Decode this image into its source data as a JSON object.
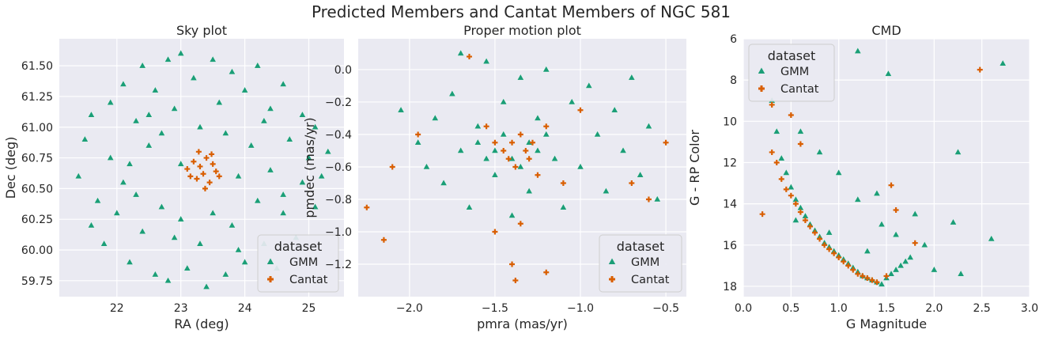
{
  "figure": {
    "suptitle": "Predicted Members and Cantat Members of NGC 581"
  },
  "colors": {
    "gmm": "#1b9e77",
    "cantat": "#d95f02",
    "panel_bg": "#eaeaf2",
    "grid": "#ffffff"
  },
  "legend": {
    "title": "dataset",
    "entries": [
      "GMM",
      "Cantat"
    ]
  },
  "chart_data": [
    {
      "type": "scatter",
      "title": "Sky plot",
      "xlabel": "RA (deg)",
      "ylabel": "Dec (deg)",
      "xlim": [
        21.1,
        25.55
      ],
      "ylim": [
        59.62,
        61.72
      ],
      "xticks": [
        22,
        23,
        24,
        25
      ],
      "yticks": [
        59.75,
        60.0,
        60.25,
        60.5,
        60.75,
        61.0,
        61.25,
        61.5
      ],
      "xtick_labels": [
        "22",
        "23",
        "24",
        "25"
      ],
      "ytick_labels": [
        "59.75",
        "60.00",
        "60.25",
        "60.50",
        "60.75",
        "61.00",
        "61.25",
        "61.50"
      ],
      "grid": true,
      "legend_position": "lower-right",
      "series": [
        {
          "name": "GMM",
          "marker": "triangle",
          "points": [
            [
              21.4,
              60.6
            ],
            [
              21.5,
              60.9
            ],
            [
              21.6,
              60.2
            ],
            [
              21.6,
              61.1
            ],
            [
              21.7,
              60.4
            ],
            [
              21.8,
              60.05
            ],
            [
              21.9,
              61.2
            ],
            [
              21.9,
              60.75
            ],
            [
              22.0,
              60.3
            ],
            [
              22.1,
              61.35
            ],
            [
              22.1,
              60.55
            ],
            [
              22.2,
              59.9
            ],
            [
              22.3,
              61.05
            ],
            [
              22.3,
              60.45
            ],
            [
              22.4,
              61.5
            ],
            [
              22.4,
              60.15
            ],
            [
              22.5,
              60.85
            ],
            [
              22.6,
              59.8
            ],
            [
              22.6,
              61.3
            ],
            [
              22.7,
              60.35
            ],
            [
              22.7,
              60.95
            ],
            [
              22.8,
              61.55
            ],
            [
              22.8,
              59.75
            ],
            [
              22.9,
              60.1
            ],
            [
              22.9,
              61.15
            ],
            [
              23.0,
              61.6
            ],
            [
              23.0,
              60.25
            ],
            [
              23.1,
              59.85
            ],
            [
              23.2,
              61.4
            ],
            [
              23.3,
              60.05
            ],
            [
              23.3,
              61.0
            ],
            [
              23.4,
              59.7
            ],
            [
              23.5,
              61.55
            ],
            [
              23.5,
              60.3
            ],
            [
              23.6,
              61.2
            ],
            [
              23.7,
              59.8
            ],
            [
              23.7,
              60.95
            ],
            [
              23.8,
              61.45
            ],
            [
              23.8,
              60.2
            ],
            [
              23.9,
              60.6
            ],
            [
              24.0,
              61.3
            ],
            [
              24.0,
              59.9
            ],
            [
              24.1,
              60.85
            ],
            [
              24.2,
              61.5
            ],
            [
              24.2,
              60.4
            ],
            [
              24.3,
              60.05
            ],
            [
              24.4,
              61.15
            ],
            [
              24.4,
              60.65
            ],
            [
              24.5,
              59.85
            ],
            [
              24.6,
              61.35
            ],
            [
              24.6,
              60.3
            ],
            [
              24.7,
              60.9
            ],
            [
              24.8,
              60.1
            ],
            [
              24.9,
              61.1
            ],
            [
              24.9,
              60.55
            ],
            [
              25.0,
              60.75
            ],
            [
              25.1,
              60.35
            ],
            [
              25.1,
              61.0
            ],
            [
              25.2,
              60.6
            ],
            [
              25.3,
              60.8
            ],
            [
              23.0,
              60.7
            ],
            [
              22.5,
              61.1
            ],
            [
              24.3,
              61.05
            ],
            [
              23.9,
              60.0
            ],
            [
              22.2,
              60.7
            ],
            [
              24.6,
              60.45
            ]
          ]
        },
        {
          "name": "Cantat",
          "marker": "plus",
          "points": [
            [
              23.1,
              60.66
            ],
            [
              23.2,
              60.72
            ],
            [
              23.25,
              60.58
            ],
            [
              23.3,
              60.68
            ],
            [
              23.35,
              60.62
            ],
            [
              23.4,
              60.75
            ],
            [
              23.45,
              60.55
            ],
            [
              23.5,
              60.7
            ],
            [
              23.55,
              60.64
            ],
            [
              23.6,
              60.6
            ],
            [
              23.28,
              60.8
            ],
            [
              23.38,
              60.5
            ],
            [
              23.15,
              60.6
            ],
            [
              23.48,
              60.78
            ]
          ]
        }
      ]
    },
    {
      "type": "scatter",
      "title": "Proper motion plot",
      "xlabel": "pmra (mas/yr)",
      "ylabel": "pmdec (mas/yr)",
      "xlim": [
        -2.3,
        -0.38
      ],
      "ylim": [
        -1.4,
        0.19
      ],
      "xticks": [
        -2.0,
        -1.5,
        -1.0,
        -0.5
      ],
      "yticks": [
        -1.2,
        -1.0,
        -0.8,
        -0.6,
        -0.4,
        -0.2,
        0.0
      ],
      "xtick_labels": [
        "−2.0",
        "−1.5",
        "−1.0",
        "−0.5"
      ],
      "ytick_labels": [
        "−1.2",
        "−1.0",
        "−0.8",
        "−0.6",
        "−0.4",
        "−0.2",
        "0.0"
      ],
      "grid": true,
      "legend_position": "lower-right",
      "series": [
        {
          "name": "GMM",
          "marker": "triangle",
          "points": [
            [
              -2.05,
              -0.25
            ],
            [
              -1.95,
              -0.45
            ],
            [
              -1.9,
              -0.6
            ],
            [
              -1.85,
              -0.3
            ],
            [
              -1.8,
              -0.7
            ],
            [
              -1.75,
              -0.15
            ],
            [
              -1.7,
              -0.5
            ],
            [
              -1.7,
              0.1
            ],
            [
              -1.65,
              -0.85
            ],
            [
              -1.6,
              -0.35
            ],
            [
              -1.55,
              0.05
            ],
            [
              -1.5,
              -0.65
            ],
            [
              -1.45,
              -0.2
            ],
            [
              -1.4,
              -0.9
            ],
            [
              -1.35,
              -0.05
            ],
            [
              -1.3,
              -0.75
            ],
            [
              -1.25,
              -0.3
            ],
            [
              -1.2,
              0.0
            ],
            [
              -1.15,
              -0.55
            ],
            [
              -1.1,
              -0.85
            ],
            [
              -1.05,
              -0.2
            ],
            [
              -1.0,
              -0.6
            ],
            [
              -0.95,
              -0.1
            ],
            [
              -0.9,
              -0.4
            ],
            [
              -0.85,
              -0.75
            ],
            [
              -0.8,
              -0.25
            ],
            [
              -0.75,
              -0.5
            ],
            [
              -0.7,
              -0.05
            ],
            [
              -0.65,
              -0.65
            ],
            [
              -0.6,
              -0.35
            ],
            [
              -0.55,
              -0.8
            ],
            [
              -1.6,
              -0.45
            ],
            [
              -1.5,
              -0.5
            ],
            [
              -1.4,
              -0.55
            ],
            [
              -1.3,
              -0.45
            ],
            [
              -1.2,
              -0.4
            ],
            [
              -1.45,
              -0.4
            ],
            [
              -1.35,
              -0.6
            ],
            [
              -1.55,
              -0.55
            ],
            [
              -1.25,
              -0.5
            ]
          ]
        },
        {
          "name": "Cantat",
          "marker": "plus",
          "points": [
            [
              -2.25,
              -0.85
            ],
            [
              -2.15,
              -1.05
            ],
            [
              -2.1,
              -0.6
            ],
            [
              -1.95,
              -0.4
            ],
            [
              -1.65,
              0.08
            ],
            [
              -1.55,
              -0.35
            ],
            [
              -1.5,
              -0.45
            ],
            [
              -1.45,
              -0.5
            ],
            [
              -1.42,
              -0.55
            ],
            [
              -1.4,
              -0.45
            ],
            [
              -1.38,
              -0.6
            ],
            [
              -1.35,
              -0.4
            ],
            [
              -1.32,
              -0.5
            ],
            [
              -1.3,
              -0.55
            ],
            [
              -1.28,
              -0.45
            ],
            [
              -1.25,
              -0.65
            ],
            [
              -1.2,
              -0.35
            ],
            [
              -1.1,
              -0.7
            ],
            [
              -1.0,
              -0.25
            ],
            [
              -0.5,
              -0.45
            ],
            [
              -1.4,
              -1.2
            ],
            [
              -1.38,
              -1.3
            ],
            [
              -1.5,
              -1.0
            ],
            [
              -1.35,
              -0.95
            ],
            [
              -1.2,
              -1.25
            ],
            [
              -0.7,
              -0.7
            ],
            [
              -0.6,
              -0.8
            ]
          ]
        }
      ]
    },
    {
      "type": "scatter",
      "title": "CMD",
      "xlabel": "G Magnitude",
      "ylabel": "G - RP Color",
      "xlim": [
        0.0,
        3.0
      ],
      "ylim": [
        18.5,
        6.0
      ],
      "y_inverted": true,
      "xticks": [
        0.0,
        0.5,
        1.0,
        1.5,
        2.0,
        2.5,
        3.0
      ],
      "yticks": [
        6,
        8,
        10,
        12,
        14,
        16,
        18
      ],
      "xtick_labels": [
        "0.0",
        "0.5",
        "1.0",
        "1.5",
        "2.0",
        "2.5",
        "3.0"
      ],
      "ytick_labels": [
        "6",
        "8",
        "10",
        "12",
        "14",
        "16",
        "18"
      ],
      "grid": true,
      "legend_position": "top-left",
      "series": [
        {
          "name": "GMM",
          "marker": "triangle",
          "points": [
            [
              0.3,
              9.0
            ],
            [
              0.35,
              10.5
            ],
            [
              0.4,
              11.8
            ],
            [
              0.45,
              12.5
            ],
            [
              0.5,
              13.2
            ],
            [
              0.55,
              13.8
            ],
            [
              0.6,
              14.2
            ],
            [
              0.65,
              14.6
            ],
            [
              0.7,
              15.0
            ],
            [
              0.75,
              15.3
            ],
            [
              0.8,
              15.6
            ],
            [
              0.85,
              15.9
            ],
            [
              0.9,
              16.1
            ],
            [
              0.95,
              16.3
            ],
            [
              1.0,
              16.5
            ],
            [
              1.05,
              16.7
            ],
            [
              1.1,
              16.9
            ],
            [
              1.15,
              17.1
            ],
            [
              1.2,
              17.3
            ],
            [
              1.25,
              17.5
            ],
            [
              1.3,
              17.6
            ],
            [
              1.35,
              17.7
            ],
            [
              1.4,
              17.8
            ],
            [
              1.45,
              17.9
            ],
            [
              1.5,
              17.6
            ],
            [
              1.55,
              17.4
            ],
            [
              1.6,
              17.2
            ],
            [
              1.65,
              17.0
            ],
            [
              1.7,
              16.8
            ],
            [
              1.75,
              16.6
            ],
            [
              1.4,
              13.5
            ],
            [
              1.6,
              15.5
            ],
            [
              1.8,
              14.5
            ],
            [
              2.0,
              17.2
            ],
            [
              2.2,
              14.9
            ],
            [
              2.25,
              11.5
            ],
            [
              2.28,
              17.4
            ],
            [
              2.6,
              15.7
            ],
            [
              2.72,
              7.2
            ],
            [
              1.52,
              7.7
            ],
            [
              1.2,
              6.6
            ],
            [
              0.6,
              10.5
            ],
            [
              0.8,
              11.5
            ],
            [
              1.0,
              12.5
            ],
            [
              1.2,
              13.8
            ],
            [
              1.45,
              15.0
            ],
            [
              1.9,
              16.0
            ],
            [
              1.3,
              16.3
            ],
            [
              0.55,
              14.8
            ],
            [
              0.9,
              15.4
            ]
          ]
        },
        {
          "name": "Cantat",
          "marker": "plus",
          "points": [
            [
              0.2,
              14.5
            ],
            [
              0.3,
              11.5
            ],
            [
              0.35,
              12.0
            ],
            [
              0.4,
              12.8
            ],
            [
              0.45,
              13.3
            ],
            [
              0.5,
              13.6
            ],
            [
              0.55,
              14.0
            ],
            [
              0.6,
              14.4
            ],
            [
              0.65,
              14.8
            ],
            [
              0.7,
              15.1
            ],
            [
              0.75,
              15.4
            ],
            [
              0.8,
              15.7
            ],
            [
              0.85,
              16.0
            ],
            [
              0.9,
              16.2
            ],
            [
              0.95,
              16.4
            ],
            [
              1.0,
              16.6
            ],
            [
              1.05,
              16.8
            ],
            [
              1.1,
              17.0
            ],
            [
              1.15,
              17.2
            ],
            [
              1.2,
              17.4
            ],
            [
              1.25,
              17.5
            ],
            [
              1.3,
              17.6
            ],
            [
              1.35,
              17.7
            ],
            [
              1.4,
              17.8
            ],
            [
              1.5,
              17.5
            ],
            [
              1.55,
              13.1
            ],
            [
              1.6,
              14.3
            ],
            [
              1.8,
              15.9
            ],
            [
              2.48,
              7.5
            ],
            [
              0.3,
              9.2
            ],
            [
              0.5,
              9.7
            ],
            [
              0.6,
              11.1
            ]
          ]
        }
      ]
    }
  ]
}
